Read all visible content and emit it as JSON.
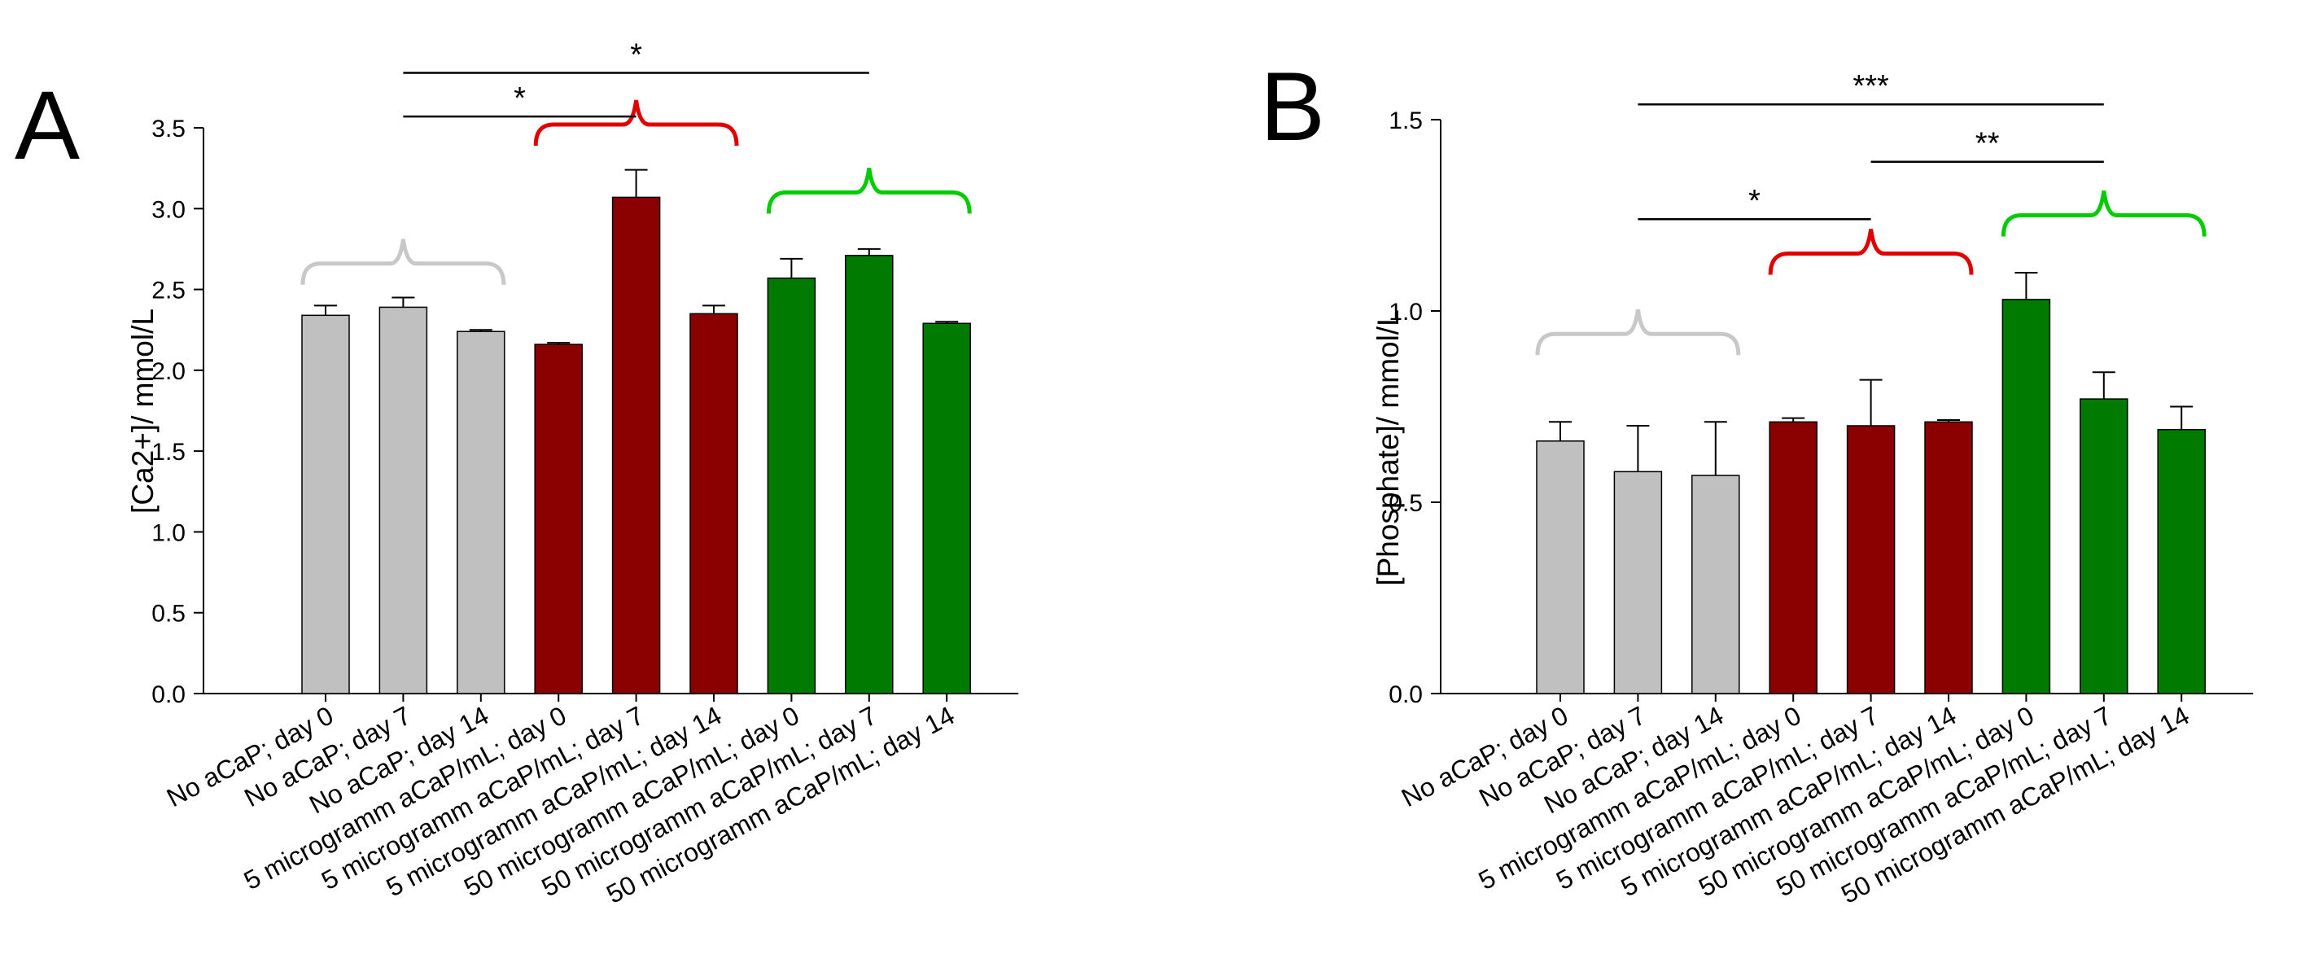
{
  "chart_data": [
    {
      "panel_label": "A",
      "type": "bar",
      "ylabel": "[Ca2+]/ mmol/L",
      "ylim": [
        0,
        3.5
      ],
      "yticks": [
        "0.0",
        "0.5",
        "1.0",
        "1.5",
        "2.0",
        "2.5",
        "3.0",
        "3.5"
      ],
      "categories": [
        "No aCaP; day 0",
        "No aCaP; day 7",
        "No aCaP; day 14",
        "5 microgramm aCaP/mL; day 0",
        "5 microgramm aCaP/mL; day 7",
        "5 microgramm aCaP/mL; day 14",
        "50 microgramm aCaP/mL; day 0",
        "50 microgramm aCaP/mL; day 7",
        "50 microgramm aCaP/mL; day 14"
      ],
      "values": [
        2.34,
        2.39,
        2.24,
        2.16,
        3.07,
        2.35,
        2.57,
        2.71,
        2.29
      ],
      "errors": [
        0.06,
        0.06,
        0.01,
        0.01,
        0.17,
        0.05,
        0.12,
        0.04,
        0.01
      ],
      "colors": [
        "#c0c0c0",
        "#c0c0c0",
        "#c0c0c0",
        "#8b0000",
        "#8b0000",
        "#8b0000",
        "#007a00",
        "#007a00",
        "#007a00"
      ],
      "brackets": [
        {
          "from": 0,
          "to": 2,
          "color": "#c8c8c8",
          "y": 2.66
        },
        {
          "from": 3,
          "to": 5,
          "color": "#e00000",
          "y": 3.52
        },
        {
          "from": 6,
          "to": 8,
          "color": "#00cc00",
          "y": 3.1
        }
      ],
      "significance": [
        {
          "from": 1,
          "to": 4,
          "label": "*",
          "y": 3.57
        },
        {
          "from": 1,
          "to": 7,
          "label": "*",
          "y": 3.84
        }
      ]
    },
    {
      "panel_label": "B",
      "type": "bar",
      "ylabel": "[Phosphate]/ mmol/L",
      "ylim": [
        0,
        1.5
      ],
      "yticks": [
        "0.0",
        "0.5",
        "1.0",
        "1.5"
      ],
      "categories": [
        "No aCaP; day 0",
        "No aCaP; day 7",
        "No aCaP; day 14",
        "5 microgramm aCaP/mL; day 0",
        "5 microgramm aCaP/mL; day 7",
        "5 microgramm aCaP/mL; day 14",
        "50 microgramm aCaP/mL; day 0",
        "50 microgramm aCaP/mL; day 7",
        "50 microgramm aCaP/mL; day 14"
      ],
      "values": [
        0.66,
        0.58,
        0.57,
        0.71,
        0.7,
        0.71,
        1.03,
        0.77,
        0.69
      ],
      "errors": [
        0.05,
        0.12,
        0.14,
        0.01,
        0.12,
        0.005,
        0.07,
        0.07,
        0.06
      ],
      "colors": [
        "#c0c0c0",
        "#c0c0c0",
        "#c0c0c0",
        "#8b0000",
        "#8b0000",
        "#8b0000",
        "#007a00",
        "#007a00",
        "#007a00"
      ],
      "brackets": [
        {
          "from": 0,
          "to": 2,
          "color": "#c8c8c8",
          "y": 0.94
        },
        {
          "from": 3,
          "to": 5,
          "color": "#e00000",
          "y": 1.15
        },
        {
          "from": 6,
          "to": 8,
          "color": "#00cc00",
          "y": 1.25
        }
      ],
      "significance": [
        {
          "from": 1,
          "to": 4,
          "label": "*",
          "y": 1.24
        },
        {
          "from": 4,
          "to": 7,
          "label": "**",
          "y": 1.39
        },
        {
          "from": 1,
          "to": 7,
          "label": "***",
          "y": 1.54
        }
      ]
    }
  ]
}
